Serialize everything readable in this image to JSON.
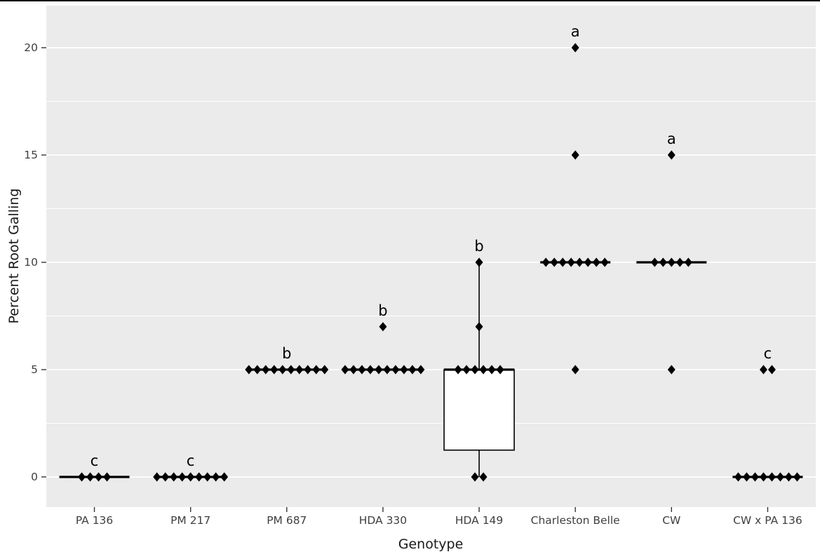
{
  "figure": {
    "panel_bg": "#ebebeb",
    "grid_major_color": "#ffffff",
    "grid_minor_color": "#ffffff",
    "point_color": "#000000",
    "box_fill": "#ffffff",
    "line_color": "#000000",
    "tick_label_color": "#404040",
    "axis_title_color": "#1a1a1a",
    "tick_mark_color": "#333333"
  },
  "chart_data": {
    "type": "boxplot",
    "title": "",
    "xlabel": "Genotype",
    "ylabel": "Percent Root Galling",
    "categories": [
      "PA 136",
      "PM 217",
      "PM 687",
      "HDA 330",
      "HDA 149",
      "Charleston Belle",
      "CW",
      "CW x PA 136"
    ],
    "y_ticks": [
      0,
      5,
      10,
      15,
      20
    ],
    "y_minor_gridlines": [
      2.5,
      7.5,
      12.5,
      17.5
    ],
    "ylim": [
      -1.4,
      21.9
    ],
    "grid": "horizontal-only",
    "legend": "none",
    "groups": [
      {
        "name": "PA 136",
        "letter": "c",
        "crossbar": 0,
        "points": [
          {
            "value": 0,
            "count": 4
          }
        ]
      },
      {
        "name": "PM 217",
        "letter": "c",
        "crossbar": 0,
        "points": [
          {
            "value": 0,
            "count": 9
          }
        ]
      },
      {
        "name": "PM 687",
        "letter": "b",
        "crossbar": 5,
        "points": [
          {
            "value": 5,
            "count": 10
          }
        ]
      },
      {
        "name": "HDA 330",
        "letter": "b",
        "crossbar": 5,
        "points": [
          {
            "value": 5,
            "count": 10
          },
          {
            "value": 7,
            "count": 1
          }
        ]
      },
      {
        "name": "HDA 149",
        "letter": "b",
        "box": {
          "lower_whisker": 0,
          "q1": 1.25,
          "median": 5,
          "q3": 5,
          "upper_whisker": 10
        },
        "points": [
          {
            "value": 0,
            "count": 2
          },
          {
            "value": 5,
            "count": 6
          },
          {
            "value": 7,
            "count": 1
          },
          {
            "value": 10,
            "count": 1
          }
        ]
      },
      {
        "name": "Charleston Belle",
        "letter": "a",
        "crossbar": 10,
        "points": [
          {
            "value": 5,
            "count": 1
          },
          {
            "value": 10,
            "count": 8
          },
          {
            "value": 15,
            "count": 1
          },
          {
            "value": 20,
            "count": 1
          }
        ]
      },
      {
        "name": "CW",
        "letter": "a",
        "crossbar": 10,
        "points": [
          {
            "value": 5,
            "count": 1
          },
          {
            "value": 10,
            "count": 5
          },
          {
            "value": 15,
            "count": 1
          }
        ]
      },
      {
        "name": "CW x PA 136",
        "letter": "c",
        "crossbar": 0,
        "points": [
          {
            "value": 0,
            "count": 8
          },
          {
            "value": 5,
            "count": 2
          }
        ]
      }
    ]
  }
}
